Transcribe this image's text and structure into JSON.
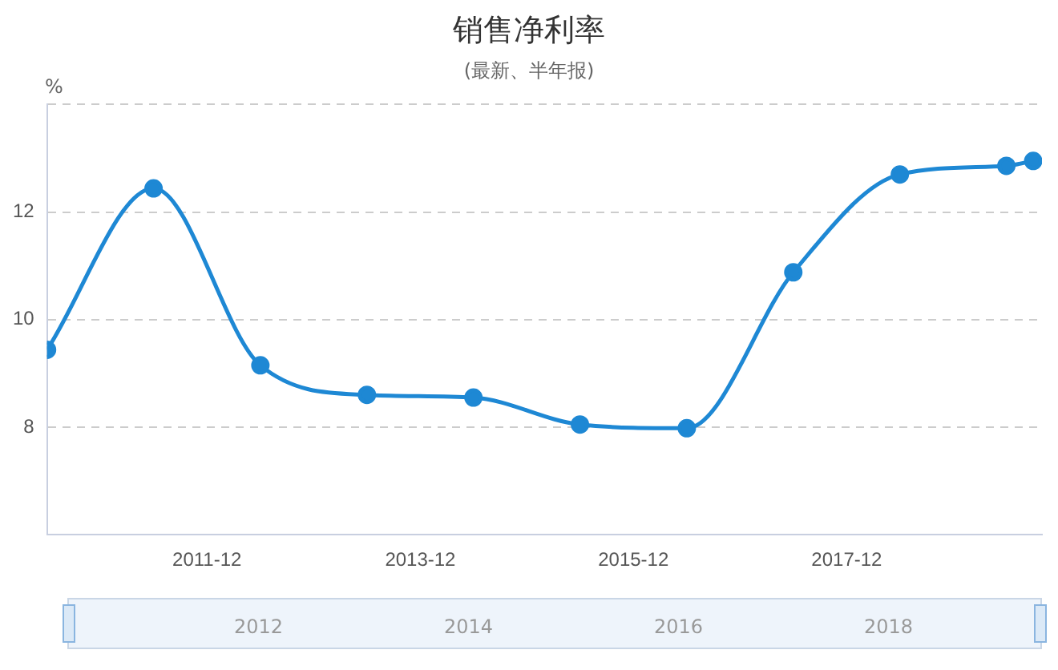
{
  "chart_data": {
    "type": "line",
    "title": "销售净利率",
    "subtitle": "(最新、半年报)",
    "ylabel": "%",
    "x": [
      "2010-06",
      "2011-06",
      "2012-06",
      "2013-06",
      "2014-06",
      "2015-06",
      "2016-06",
      "2017-06",
      "2018-06",
      "2019-06",
      "2019-09"
    ],
    "series": [
      {
        "color": "#1e88d4",
        "values": [
          9.44,
          12.44,
          9.15,
          8.6,
          8.55,
          8.05,
          7.98,
          10.88,
          12.7,
          12.86,
          12.95
        ]
      }
    ],
    "xlim": [
      "2010-06",
      "2019-10"
    ],
    "xticks": [
      {
        "value": "2011-12",
        "label": "2011-12"
      },
      {
        "value": "2013-12",
        "label": "2013-12"
      },
      {
        "value": "2015-12",
        "label": "2015-12"
      },
      {
        "value": "2017-12",
        "label": "2017-12"
      }
    ],
    "ylim": [
      6,
      14
    ],
    "yticks": [
      {
        "value": 6,
        "label": null
      },
      8,
      10,
      12,
      {
        "value": 14,
        "label": null
      }
    ],
    "grid": "y",
    "legend": false,
    "marker": "circle",
    "line_style": "solid",
    "annotations": [
      "2012",
      "2014",
      "2016",
      "2018"
    ]
  }
}
